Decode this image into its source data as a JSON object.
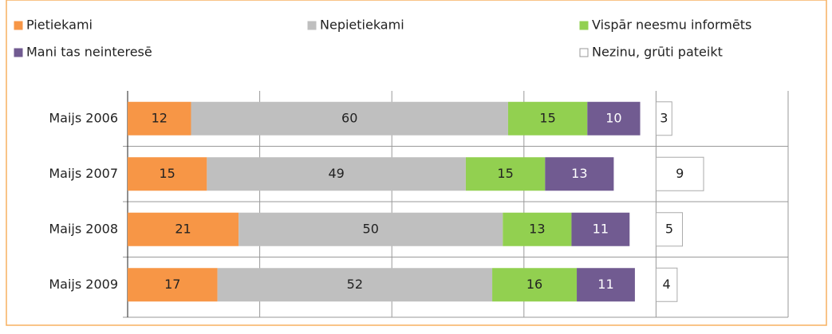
{
  "chart_data": {
    "type": "stacked-bar-horizontal",
    "categories": [
      "Maijs 2006",
      "Maijs 2007",
      "Maijs 2008",
      "Maijs 2009"
    ],
    "series": [
      {
        "name": "Pietiekami",
        "color": "#f79646",
        "values": [
          12,
          15,
          21,
          17
        ]
      },
      {
        "name": "Nepietiekami",
        "color": "#bfbfbf",
        "values": [
          60,
          49,
          50,
          52
        ]
      },
      {
        "name": "Vispār neesmu informēts",
        "color": "#92d050",
        "values": [
          15,
          15,
          13,
          16
        ]
      },
      {
        "name": "Mani tas neinteresē",
        "color": "#715b91",
        "values": [
          10,
          13,
          11,
          11
        ]
      },
      {
        "name": "Nezinu, grūti pateikt",
        "color": "#ffffff",
        "values": [
          3,
          9,
          5,
          4
        ]
      }
    ],
    "xlim": [
      0,
      125
    ],
    "xticks": [
      0,
      25,
      50,
      75,
      100,
      125
    ],
    "grid": true
  }
}
